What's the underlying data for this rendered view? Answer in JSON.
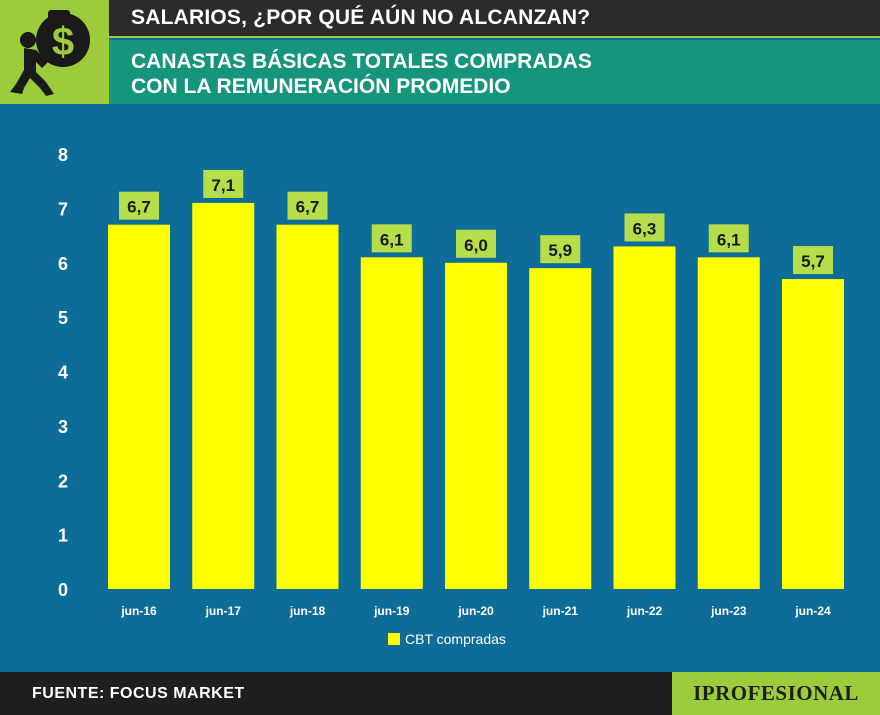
{
  "header": {
    "title": "SALARIOS, ¿POR QUÉ AÚN NO ALCANZAN?",
    "subtitle_line1": "CANASTAS BÁSICAS TOTALES COMPRADAS",
    "subtitle_line2": "CON LA REMUNERACIÓN PROMEDIO"
  },
  "footer": {
    "source": "FUENTE: FOCUS MARKET",
    "brand": "IPROFESIONAL"
  },
  "colors": {
    "background": "#0e6c98",
    "bar": "#ffff00",
    "label_box": "#b6dd4a",
    "accent_green": "#9ccc3c",
    "teal": "#15957c"
  },
  "icons": {
    "logo": "money-bag-carrier-icon"
  },
  "chart_data": {
    "type": "bar",
    "categories": [
      "jun-16",
      "jun-17",
      "jun-18",
      "jun-19",
      "jun-20",
      "jun-21",
      "jun-22",
      "jun-23",
      "jun-24"
    ],
    "series": [
      {
        "name": "CBT compradas",
        "values": [
          6.7,
          7.1,
          6.7,
          6.1,
          6.0,
          5.9,
          6.3,
          6.1,
          5.7
        ],
        "labels": [
          "6,7",
          "7,1",
          "6,7",
          "6,1",
          "6,0",
          "5,9",
          "6,3",
          "6,1",
          "5,7"
        ]
      }
    ],
    "yticks": [
      "0",
      "1",
      "2",
      "3",
      "4",
      "5",
      "6",
      "7",
      "8"
    ],
    "ylim": [
      0,
      8
    ],
    "grid": false,
    "legend": "bottom-center"
  }
}
